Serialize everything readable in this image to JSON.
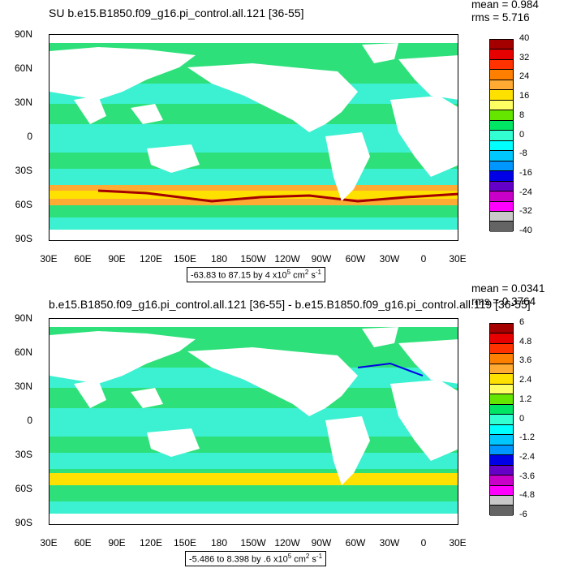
{
  "panels": [
    {
      "title": "SU b.e15.B1850.f09_g16.pi_control.all.121 [36-55]",
      "stats": {
        "mean": "mean = 0.984",
        "rms": "rms = 5.716"
      },
      "range_prefix": "-63.83 to 87.15 by 4 x10",
      "range_suffix": " cm",
      "range_suffix2": " s",
      "range_exp": "5",
      "range_exp2": "2",
      "range_exp3": "-1",
      "colorbar_labels": [
        "40",
        "32",
        "24",
        "16",
        "8",
        "0",
        "-8",
        "-16",
        "-24",
        "-32",
        "-40"
      ],
      "colorbar_colors": [
        "#a50000",
        "#e60000",
        "#ff3200",
        "#ff7f00",
        "#ffaa32",
        "#ffe100",
        "#ffff64",
        "#64e600",
        "#00e664",
        "#32ffd2",
        "#00ffff",
        "#00c8ff",
        "#0096ff",
        "#0000e6",
        "#6400c8",
        "#c800c8",
        "#ff00ff",
        "#c8c8c8",
        "#646464"
      ]
    },
    {
      "title": "b.e15.B1850.f09_g16.pi_control.all.121 [36-55] - b.e15.B1850.f09_g16.pi_control.all.119 [36-55]",
      "stats": {
        "mean": "mean = 0.0341",
        "rms": "rms = 0.3764"
      },
      "range_prefix": "-5.486 to 8.398 by .6 x10",
      "range_suffix": " cm",
      "range_suffix2": " s",
      "range_exp": "5",
      "range_exp2": "2",
      "range_exp3": "-1",
      "colorbar_labels": [
        "6",
        "4.8",
        "3.6",
        "2.4",
        "1.2",
        "0",
        "-1.2",
        "-2.4",
        "-3.6",
        "-4.8",
        "-6"
      ],
      "colorbar_colors": [
        "#a50000",
        "#e60000",
        "#ff3200",
        "#ff7f00",
        "#ffaa32",
        "#ffe100",
        "#ffff64",
        "#64e600",
        "#00e664",
        "#32ffd2",
        "#00ffff",
        "#00c8ff",
        "#0096ff",
        "#0000e6",
        "#6400c8",
        "#c800c8",
        "#ff00ff",
        "#c8c8c8",
        "#646464"
      ]
    }
  ],
  "lat_labels": [
    "90N",
    "60N",
    "30N",
    "0",
    "30S",
    "60S",
    "90S"
  ],
  "lon_labels": [
    "30E",
    "60E",
    "90E",
    "120E",
    "150E",
    "180",
    "150W",
    "120W",
    "90W",
    "60W",
    "30W",
    "0",
    "30E"
  ],
  "colors": {
    "ocean_base": "#2ee07a",
    "teal": "#3cf0d2",
    "land": "#ffffff"
  }
}
